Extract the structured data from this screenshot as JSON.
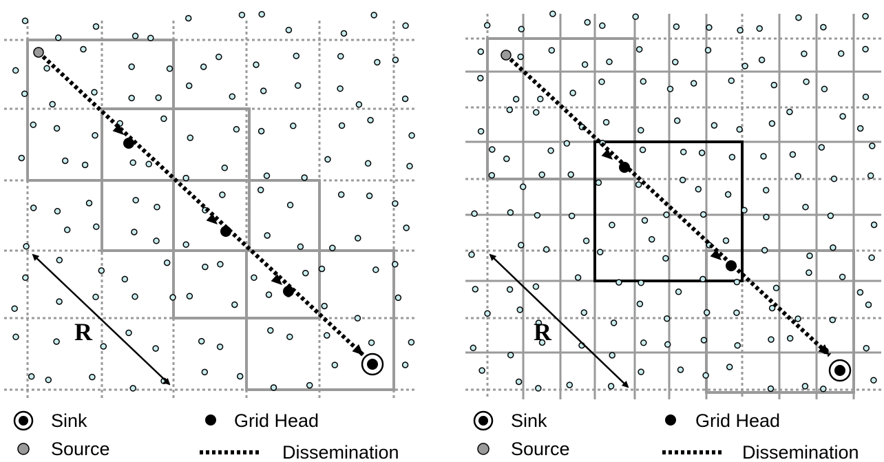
{
  "colors": {
    "grid_line": "#9a9a9a",
    "highlight_box": "#000000",
    "node_fill": "#c8ecee",
    "node_stroke": "#000000",
    "source_fill": "#9a9a9a",
    "grid_head": "#000000",
    "sink": "#000000",
    "dissemination": "#000000"
  },
  "left_panel": {
    "range_label": "R"
  },
  "right_panel": {
    "range_label": "R"
  },
  "legend": {
    "sink": "Sink",
    "grid_head": "Grid Head",
    "source": "Source",
    "dissemination": "Dissemination"
  }
}
